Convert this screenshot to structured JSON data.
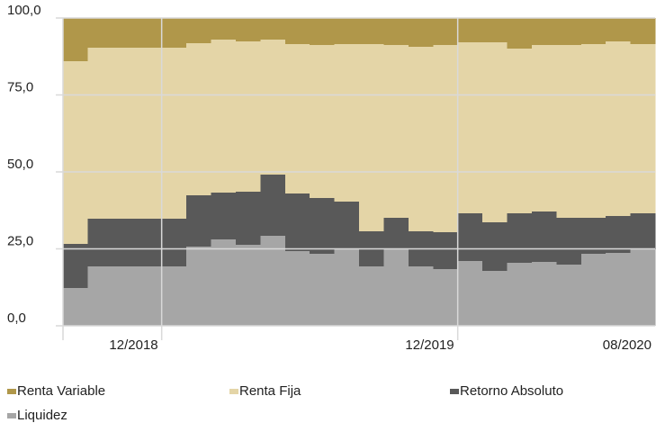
{
  "chart_data": {
    "type": "stacked-step-area",
    "categories": [
      null,
      null,
      null,
      "12/2018",
      null,
      null,
      null,
      null,
      null,
      null,
      null,
      null,
      null,
      null,
      null,
      "12/2019",
      null,
      null,
      null,
      null,
      null,
      null,
      null,
      "08/2020"
    ],
    "series": [
      {
        "name": "Liquidez",
        "color": "#a6a6a6",
        "values": [
          12.3,
          19.3,
          19.3,
          19.3,
          19.3,
          25.7,
          28.1,
          26.3,
          29.2,
          24.3,
          23.4,
          24.9,
          19.3,
          24.9,
          19.3,
          18.4,
          21.1,
          17.8,
          20.5,
          20.8,
          19.9,
          23.4,
          23.7,
          24.9
        ]
      },
      {
        "name": "Retorno Absoluto",
        "color": "#595959",
        "values": [
          14.3,
          15.5,
          15.5,
          15.5,
          15.5,
          16.7,
          15.2,
          17.3,
          19.9,
          18.7,
          18.1,
          15.5,
          11.4,
          10.2,
          11.4,
          12.0,
          15.4,
          15.8,
          16.0,
          16.3,
          15.2,
          11.7,
          12.0,
          11.6
        ]
      },
      {
        "name": "Renta Fija",
        "color": "#e4d5a7",
        "values": [
          59.4,
          55.6,
          55.6,
          55.6,
          55.6,
          49.4,
          49.7,
          48.8,
          43.9,
          48.5,
          49.7,
          51.1,
          60.8,
          56.1,
          59.9,
          60.8,
          55.6,
          58.5,
          53.5,
          54.1,
          56.1,
          56.4,
          56.7,
          55.0
        ]
      },
      {
        "name": "Renta Variable",
        "color": "#b0974a",
        "values": [
          14.0,
          9.6,
          9.6,
          9.6,
          9.6,
          8.2,
          7.0,
          7.6,
          7.0,
          8.5,
          8.8,
          8.5,
          8.5,
          8.8,
          9.4,
          8.8,
          7.9,
          7.9,
          10.0,
          8.8,
          8.8,
          8.5,
          7.6,
          8.5
        ]
      }
    ],
    "ylim": [
      0,
      100
    ],
    "yticks": [
      {
        "value": 0,
        "label": "0,0"
      },
      {
        "value": 25,
        "label": "25,0"
      },
      {
        "value": 50,
        "label": "50,0"
      },
      {
        "value": 75,
        "label": "75,0"
      },
      {
        "value": 100,
        "label": "100,0"
      }
    ],
    "grid": true
  }
}
